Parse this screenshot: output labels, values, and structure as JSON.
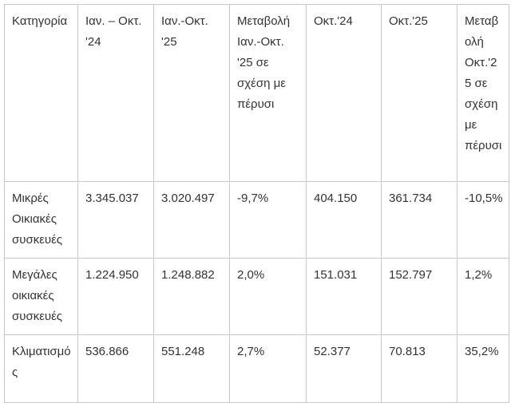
{
  "colors": {
    "background": "#ffffff",
    "text": "#333333",
    "border": "#c9c9c9"
  },
  "chart_data": {
    "type": "table",
    "title": "",
    "columns": [
      "Κατηγορία",
      "Ιαν. – Οκτ. '24",
      "Ιαν.-Οκτ. '25",
      "Μεταβολή Ιαν.-Οκτ. '25 σε σχέση με πέρυσι",
      "Οκτ.'24",
      "Οκτ.'25",
      "Μεταβολή Οκτ.'25 σε σχέση με πέρυσι"
    ],
    "rows": [
      [
        "Μικρές Οικιακές συσκευές",
        "3.345.037",
        "3.020.497",
        "-9,7%",
        "404.150",
        "361.734",
        "-10,5%"
      ],
      [
        "Μεγάλες οικιακές συσκευές",
        "1.224.950",
        "1.248.882",
        "2,0%",
        "151.031",
        "152.797",
        "1,2%"
      ],
      [
        "Κλιματισμός",
        "536.866",
        "551.248",
        "2,7%",
        "52.377",
        "70.813",
        "35,2%"
      ]
    ]
  }
}
